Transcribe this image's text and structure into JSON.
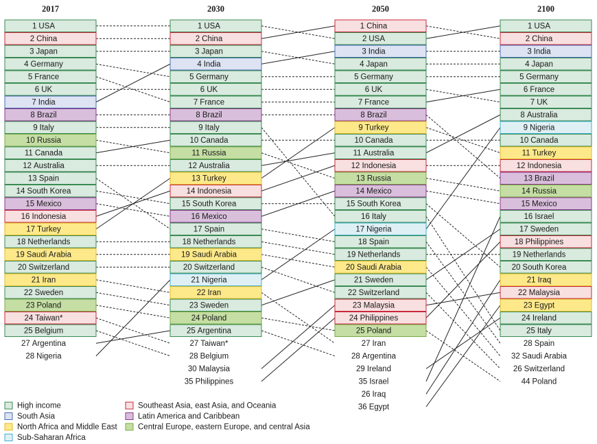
{
  "columns": [
    {
      "year": "2017",
      "entries": [
        {
          "rank": 1,
          "name": "USA",
          "fill": "#d9eadf"
        },
        {
          "rank": 2,
          "name": "China",
          "fill": "#f8dfe0"
        },
        {
          "rank": 3,
          "name": "Japan",
          "fill": "#d9eadf"
        },
        {
          "rank": 4,
          "name": "Germany",
          "fill": "#d9eadf"
        },
        {
          "rank": 5,
          "name": "France",
          "fill": "#d9eadf"
        },
        {
          "rank": 6,
          "name": "UK",
          "fill": "#d9eadf"
        },
        {
          "rank": 7,
          "name": "India",
          "fill": "#dde3f3"
        },
        {
          "rank": 8,
          "name": "Brazil",
          "fill": "#d9bfdc"
        },
        {
          "rank": 9,
          "name": "Italy",
          "fill": "#d9eadf"
        },
        {
          "rank": 10,
          "name": "Russia",
          "fill": "#c5dea4"
        },
        {
          "rank": 11,
          "name": "Canada",
          "fill": "#d9eadf"
        },
        {
          "rank": 12,
          "name": "Australia",
          "fill": "#d9eadf"
        },
        {
          "rank": 13,
          "name": "Spain",
          "fill": "#d9eadf"
        },
        {
          "rank": 14,
          "name": "South Korea",
          "fill": "#d9eadf"
        },
        {
          "rank": 15,
          "name": "Mexico",
          "fill": "#d9bfdc"
        },
        {
          "rank": 16,
          "name": "Indonesia",
          "fill": "#f8dfe0"
        },
        {
          "rank": 17,
          "name": "Turkey",
          "fill": "#fde98a"
        },
        {
          "rank": 18,
          "name": "Netherlands",
          "fill": "#d9eadf"
        },
        {
          "rank": 19,
          "name": "Saudi Arabia",
          "fill": "#fde98a"
        },
        {
          "rank": 20,
          "name": "Switzerland",
          "fill": "#d9eadf"
        },
        {
          "rank": 21,
          "name": "Iran",
          "fill": "#fde98a"
        },
        {
          "rank": 22,
          "name": "Sweden",
          "fill": "#d9eadf"
        },
        {
          "rank": 23,
          "name": "Poland",
          "fill": "#c5dea4"
        },
        {
          "rank": 24,
          "name": "Taiwan*",
          "fill": "#f8dfe0"
        },
        {
          "rank": 25,
          "name": "Belgium",
          "fill": "#d9eadf"
        },
        {
          "rank": 27,
          "name": "Argentina"
        },
        {
          "rank": 28,
          "name": "Nigeria"
        }
      ]
    },
    {
      "year": "2030",
      "entries": [
        {
          "rank": 1,
          "name": "USA",
          "fill": "#d9eadf"
        },
        {
          "rank": 2,
          "name": "China",
          "fill": "#f8dfe0"
        },
        {
          "rank": 3,
          "name": "Japan",
          "fill": "#d9eadf"
        },
        {
          "rank": 4,
          "name": "India",
          "fill": "#dde3f3"
        },
        {
          "rank": 5,
          "name": "Germany",
          "fill": "#d9eadf"
        },
        {
          "rank": 6,
          "name": "UK",
          "fill": "#d9eadf"
        },
        {
          "rank": 7,
          "name": "France",
          "fill": "#d9eadf"
        },
        {
          "rank": 8,
          "name": "Brazil",
          "fill": "#d9bfdc"
        },
        {
          "rank": 9,
          "name": "Italy",
          "fill": "#d9eadf"
        },
        {
          "rank": 10,
          "name": "Canada",
          "fill": "#d9eadf"
        },
        {
          "rank": 11,
          "name": "Russia",
          "fill": "#c5dea4"
        },
        {
          "rank": 12,
          "name": "Australia",
          "fill": "#d9eadf"
        },
        {
          "rank": 13,
          "name": "Turkey",
          "fill": "#fde98a"
        },
        {
          "rank": 14,
          "name": "Indonesia",
          "fill": "#f8dfe0"
        },
        {
          "rank": 15,
          "name": "South Korea",
          "fill": "#d9eadf"
        },
        {
          "rank": 16,
          "name": "Mexico",
          "fill": "#d9bfdc"
        },
        {
          "rank": 17,
          "name": "Spain",
          "fill": "#d9eadf"
        },
        {
          "rank": 18,
          "name": "Netherlands",
          "fill": "#d9eadf"
        },
        {
          "rank": 19,
          "name": "Saudi Arabia",
          "fill": "#fde98a"
        },
        {
          "rank": 20,
          "name": "Switzerland",
          "fill": "#d9eadf"
        },
        {
          "rank": 21,
          "name": "Nigeria",
          "fill": "#dff0f5"
        },
        {
          "rank": 22,
          "name": "Iran",
          "fill": "#fde98a"
        },
        {
          "rank": 23,
          "name": "Sweden",
          "fill": "#d9eadf"
        },
        {
          "rank": 24,
          "name": "Poland",
          "fill": "#c5dea4"
        },
        {
          "rank": 25,
          "name": "Argentina",
          "fill": "#d9eadf"
        },
        {
          "rank": 27,
          "name": "Taiwan*"
        },
        {
          "rank": 28,
          "name": "Belgium"
        },
        {
          "rank": 30,
          "name": "Malaysia"
        },
        {
          "rank": 35,
          "name": "Philippines"
        }
      ]
    },
    {
      "year": "2050",
      "entries": [
        {
          "rank": 1,
          "name": "China",
          "fill": "#f8dfe0"
        },
        {
          "rank": 2,
          "name": "USA",
          "fill": "#d9eadf"
        },
        {
          "rank": 3,
          "name": "India",
          "fill": "#dde3f3"
        },
        {
          "rank": 4,
          "name": "Japan",
          "fill": "#d9eadf"
        },
        {
          "rank": 5,
          "name": "Germany",
          "fill": "#d9eadf"
        },
        {
          "rank": 6,
          "name": "UK",
          "fill": "#d9eadf"
        },
        {
          "rank": 7,
          "name": "France",
          "fill": "#d9eadf"
        },
        {
          "rank": 8,
          "name": "Brazil",
          "fill": "#d9bfdc"
        },
        {
          "rank": 9,
          "name": "Turkey",
          "fill": "#fde98a"
        },
        {
          "rank": 10,
          "name": "Canada",
          "fill": "#d9eadf"
        },
        {
          "rank": 11,
          "name": "Australia",
          "fill": "#d9eadf"
        },
        {
          "rank": 12,
          "name": "Indonesia",
          "fill": "#f8dfe0"
        },
        {
          "rank": 13,
          "name": "Russia",
          "fill": "#c5dea4"
        },
        {
          "rank": 14,
          "name": "Mexico",
          "fill": "#d9bfdc"
        },
        {
          "rank": 15,
          "name": "South Korea",
          "fill": "#d9eadf"
        },
        {
          "rank": 16,
          "name": "Italy",
          "fill": "#d9eadf"
        },
        {
          "rank": 17,
          "name": "Nigeria",
          "fill": "#dff0f5"
        },
        {
          "rank": 18,
          "name": "Spain",
          "fill": "#d9eadf"
        },
        {
          "rank": 19,
          "name": "Netherlands",
          "fill": "#d9eadf"
        },
        {
          "rank": 20,
          "name": "Saudi Arabia",
          "fill": "#fde98a"
        },
        {
          "rank": 21,
          "name": "Sweden",
          "fill": "#d9eadf"
        },
        {
          "rank": 22,
          "name": "Switzerland",
          "fill": "#d9eadf"
        },
        {
          "rank": 23,
          "name": "Malaysia",
          "fill": "#f8dfe0"
        },
        {
          "rank": 24,
          "name": "Philippines",
          "fill": "#f8dfe0"
        },
        {
          "rank": 25,
          "name": "Poland",
          "fill": "#c5dea4"
        },
        {
          "rank": 27,
          "name": "Iran"
        },
        {
          "rank": 28,
          "name": "Argentina"
        },
        {
          "rank": 29,
          "name": "Ireland"
        },
        {
          "rank": 35,
          "name": "Israel"
        },
        {
          "rank": 26,
          "name": "Iraq"
        },
        {
          "rank": 36,
          "name": "Egypt"
        }
      ]
    },
    {
      "year": "2100",
      "entries": [
        {
          "rank": 1,
          "name": "USA",
          "fill": "#d9eadf"
        },
        {
          "rank": 2,
          "name": "China",
          "fill": "#f8dfe0"
        },
        {
          "rank": 3,
          "name": "India",
          "fill": "#dde3f3"
        },
        {
          "rank": 4,
          "name": "Japan",
          "fill": "#d9eadf"
        },
        {
          "rank": 5,
          "name": "Germany",
          "fill": "#d9eadf"
        },
        {
          "rank": 6,
          "name": "France",
          "fill": "#d9eadf"
        },
        {
          "rank": 7,
          "name": "UK",
          "fill": "#d9eadf"
        },
        {
          "rank": 8,
          "name": "Australia",
          "fill": "#d9eadf"
        },
        {
          "rank": 9,
          "name": "Nigeria",
          "fill": "#dff0f5"
        },
        {
          "rank": 10,
          "name": "Canada",
          "fill": "#d9eadf"
        },
        {
          "rank": 11,
          "name": "Turkey",
          "fill": "#fde98a"
        },
        {
          "rank": 12,
          "name": "Indonesia",
          "fill": "#f8dfe0"
        },
        {
          "rank": 13,
          "name": "Brazil",
          "fill": "#d9bfdc"
        },
        {
          "rank": 14,
          "name": "Russia",
          "fill": "#c5dea4"
        },
        {
          "rank": 15,
          "name": "Mexico",
          "fill": "#d9bfdc"
        },
        {
          "rank": 16,
          "name": "Israel",
          "fill": "#d9eadf"
        },
        {
          "rank": 17,
          "name": "Sweden",
          "fill": "#d9eadf"
        },
        {
          "rank": 18,
          "name": "Philippines",
          "fill": "#f8dfe0"
        },
        {
          "rank": 19,
          "name": "Netherlands",
          "fill": "#d9eadf"
        },
        {
          "rank": 20,
          "name": "South Korea",
          "fill": "#d9eadf"
        },
        {
          "rank": 21,
          "name": "Iraq",
          "fill": "#fde98a"
        },
        {
          "rank": 22,
          "name": "Malaysia",
          "fill": "#f8dfe0"
        },
        {
          "rank": 23,
          "name": "Egypt",
          "fill": "#fde98a"
        },
        {
          "rank": 24,
          "name": "Ireland",
          "fill": "#d9eadf"
        },
        {
          "rank": 25,
          "name": "Italy",
          "fill": "#d9eadf"
        },
        {
          "rank": 28,
          "name": "Spain"
        },
        {
          "rank": 32,
          "name": "Saudi Arabia"
        },
        {
          "rank": 26,
          "name": "Switzerland"
        },
        {
          "rank": 44,
          "name": "Poland"
        }
      ]
    }
  ],
  "legend": [
    {
      "label": "High income",
      "fill": "#d9eadf",
      "stroke": "#3a8a52"
    },
    {
      "label": "South Asia",
      "fill": "#dde3f3",
      "stroke": "#4a6fb5"
    },
    {
      "label": "North Africa and Middle East",
      "fill": "#fde98a",
      "stroke": "#e0bb2a"
    },
    {
      "label": "Sub-Saharan Africa",
      "fill": "#dff0f5",
      "stroke": "#3fb0cf"
    },
    {
      "label": "Southeast Asia, east Asia, and Oceania",
      "fill": "#f8dfe0",
      "stroke": "#c8283c"
    },
    {
      "label": "Latin America and Caribbean",
      "fill": "#d9bfdc",
      "stroke": "#8a3a8a"
    },
    {
      "label": "Central Europe, eastern Europe, and central Asia",
      "fill": "#c5dea4",
      "stroke": "#7aab4a"
    }
  ]
}
